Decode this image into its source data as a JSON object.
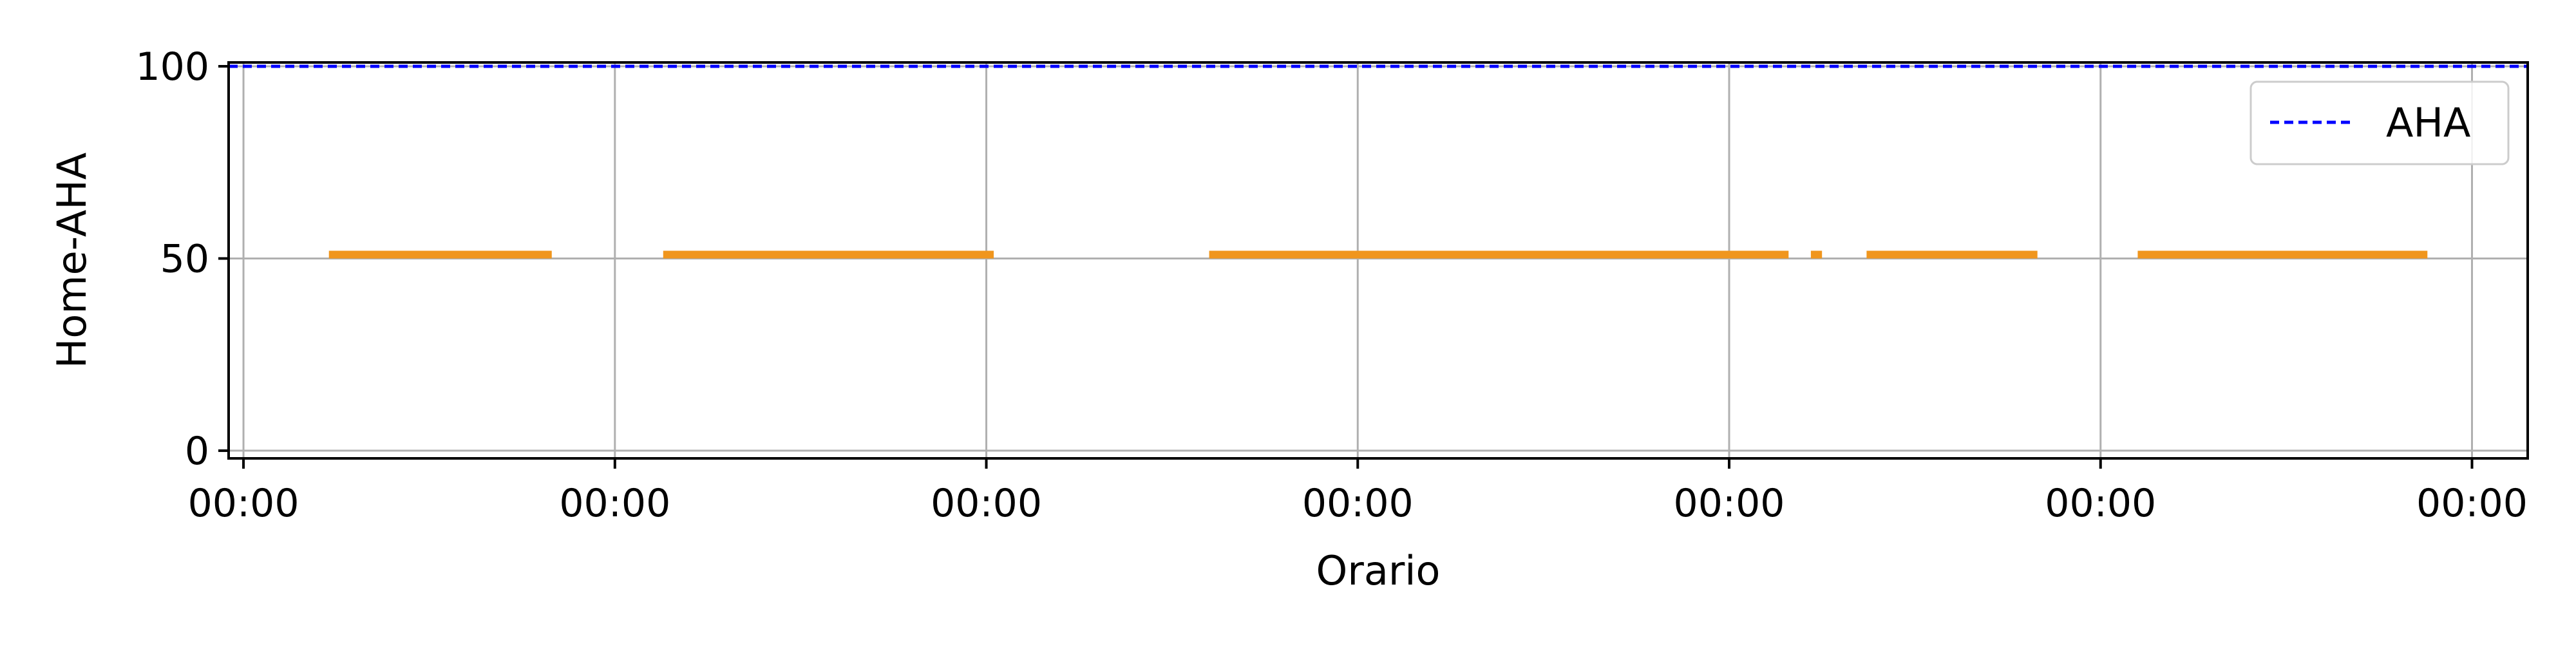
{
  "chart_data": {
    "type": "line",
    "title": "",
    "xlabel": "Orario",
    "ylabel": "Home-AHA",
    "ylim": [
      -2,
      101
    ],
    "yticks": [
      0,
      50,
      100
    ],
    "xlim": [
      -0.04,
      6.15
    ],
    "xticks": [
      0,
      1,
      2,
      3,
      4,
      5,
      6
    ],
    "xtick_labels": [
      "00:00",
      "00:00",
      "00:00",
      "00:00",
      "00:00",
      "00:00",
      "00:00"
    ],
    "grid": true,
    "legend_position": "top-right",
    "series": [
      {
        "name": "",
        "style": "solid",
        "color": "#f0961e",
        "value": 51,
        "segments": [
          [
            0.23,
            0.83
          ],
          [
            1.13,
            2.02
          ],
          [
            2.6,
            4.16
          ],
          [
            4.22,
            4.25
          ],
          [
            4.37,
            4.83
          ],
          [
            5.1,
            5.88
          ]
        ]
      },
      {
        "name": "AHA",
        "style": "dashed",
        "color": "#0000ff",
        "value": 100,
        "x": [
          -0.04,
          6.15
        ]
      }
    ]
  }
}
